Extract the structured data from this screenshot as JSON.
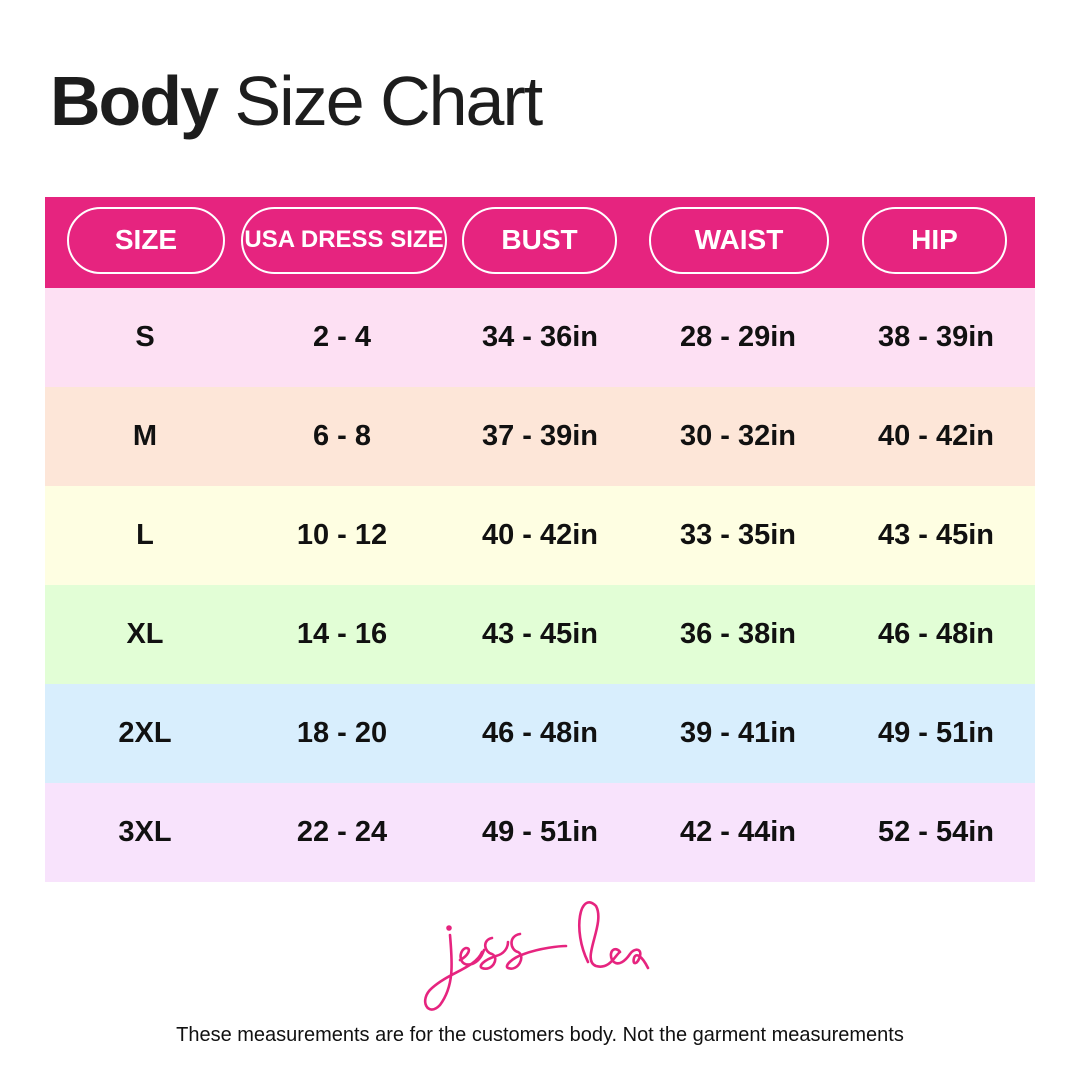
{
  "title": {
    "bold": "Body",
    "regular": "Size Chart"
  },
  "colors": {
    "accent": "#e6247f",
    "rows": [
      "#fde0f3",
      "#fde6d8",
      "#fefee2",
      "#e2fed6",
      "#d8eefd",
      "#f8e3fc"
    ]
  },
  "columns": [
    "SIZE",
    "USA DRESS SIZE",
    "BUST",
    "WAIST",
    "HIP"
  ],
  "rows": [
    [
      "S",
      "2 - 4",
      "34 - 36in",
      "28 - 29in",
      "38 - 39in"
    ],
    [
      "M",
      "6 - 8",
      "37 - 39in",
      "30 - 32in",
      "40 - 42in"
    ],
    [
      "L",
      "10 - 12",
      "40 - 42in",
      "33 - 35in",
      "43 - 45in"
    ],
    [
      "XL",
      "14 - 16",
      "43 - 45in",
      "36 - 38in",
      "46 - 48in"
    ],
    [
      "2XL",
      "18 - 20",
      "46 - 48in",
      "39 - 41in",
      "49 - 51in"
    ],
    [
      "3XL",
      "22 - 24",
      "49 - 51in",
      "42 - 44in",
      "52 - 54in"
    ]
  ],
  "logo_text": "jess lea",
  "footnote": "These measurements are for the customers body. Not the garment measurements"
}
